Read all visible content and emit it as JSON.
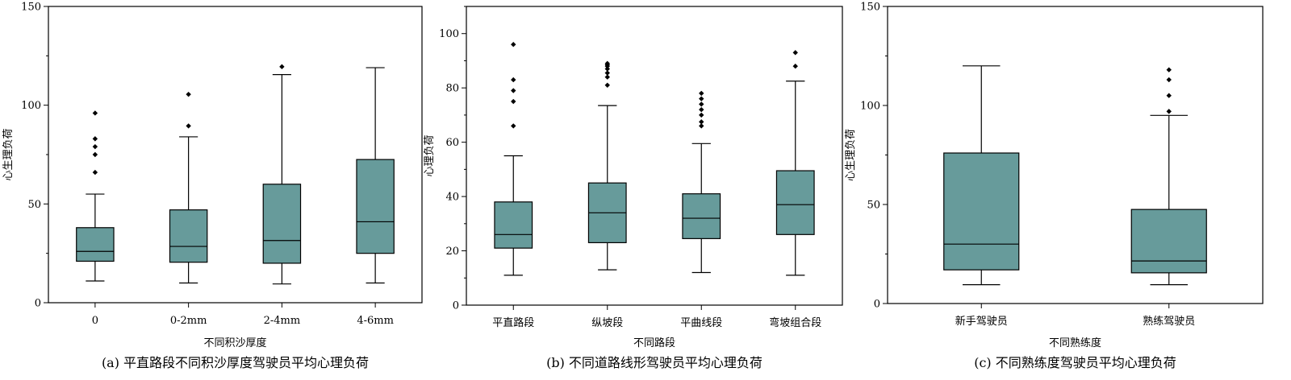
{
  "chart_data": [
    {
      "type": "box",
      "caption": "(a) 平直路段不同积沙厚度驾驶员平均心理负荷",
      "xlabel": "不同积沙厚度",
      "ylabel": "心生理负荷",
      "ylim": [
        0,
        150
      ],
      "yticks": [
        0,
        50,
        100,
        150
      ],
      "box_color": "#679b9b",
      "categories": [
        "0",
        "0-2mm",
        "2-4mm",
        "4-6mm"
      ],
      "boxes": [
        {
          "whisker_low": 11,
          "q1": 21,
          "median": 26,
          "q3": 38,
          "whisker_high": 55,
          "outliers": [
            66,
            75,
            79,
            83,
            96
          ]
        },
        {
          "whisker_low": 10,
          "q1": 20.5,
          "median": 28.5,
          "q3": 47,
          "whisker_high": 84,
          "outliers": [
            89.5,
            105.5
          ]
        },
        {
          "whisker_low": 9.5,
          "q1": 20,
          "median": 31.5,
          "q3": 60,
          "whisker_high": 115.5,
          "outliers": [
            119.5
          ]
        },
        {
          "whisker_low": 10,
          "q1": 25,
          "median": 41,
          "q3": 72.5,
          "whisker_high": 119,
          "outliers": []
        }
      ]
    },
    {
      "type": "box",
      "caption": "(b) 不同道路线形驾驶员平均心理负荷",
      "xlabel": "不同路段",
      "ylabel": "心理负荷",
      "ylim": [
        0,
        110
      ],
      "yticks": [
        0,
        20,
        40,
        60,
        80,
        100
      ],
      "box_color": "#679b9b",
      "categories": [
        "平直路段",
        "纵坡段",
        "平曲线段",
        "弯坡组合段"
      ],
      "boxes": [
        {
          "whisker_low": 11,
          "q1": 21,
          "median": 26,
          "q3": 38,
          "whisker_high": 55,
          "outliers": [
            66,
            75,
            79,
            83,
            96
          ]
        },
        {
          "whisker_low": 13,
          "q1": 23,
          "median": 34,
          "q3": 45,
          "whisker_high": 73.5,
          "outliers": [
            81,
            84,
            85.5,
            87,
            88,
            88.5,
            89
          ]
        },
        {
          "whisker_low": 12,
          "q1": 24.5,
          "median": 32,
          "q3": 41,
          "whisker_high": 59.5,
          "outliers": [
            66,
            67.5,
            70,
            72,
            74,
            76,
            78
          ]
        },
        {
          "whisker_low": 11,
          "q1": 26,
          "median": 37,
          "q3": 49.5,
          "whisker_high": 82.5,
          "outliers": [
            88,
            93
          ]
        }
      ]
    },
    {
      "type": "box",
      "caption": "(c) 不同熟练度驾驶员平均心理负荷",
      "xlabel": "不同熟练度",
      "ylabel": "心生理负荷",
      "ylim": [
        0,
        150
      ],
      "yticks": [
        0,
        50,
        100,
        150
      ],
      "box_color": "#679b9b",
      "categories": [
        "新手驾驶员",
        "熟练驾驶员"
      ],
      "boxes": [
        {
          "whisker_low": 9.5,
          "q1": 17,
          "median": 30,
          "q3": 76,
          "whisker_high": 120,
          "outliers": []
        },
        {
          "whisker_low": 9.5,
          "q1": 15.5,
          "median": 21.5,
          "q3": 47.5,
          "whisker_high": 95,
          "outliers": [
            97,
            105,
            113,
            118
          ]
        }
      ]
    }
  ]
}
